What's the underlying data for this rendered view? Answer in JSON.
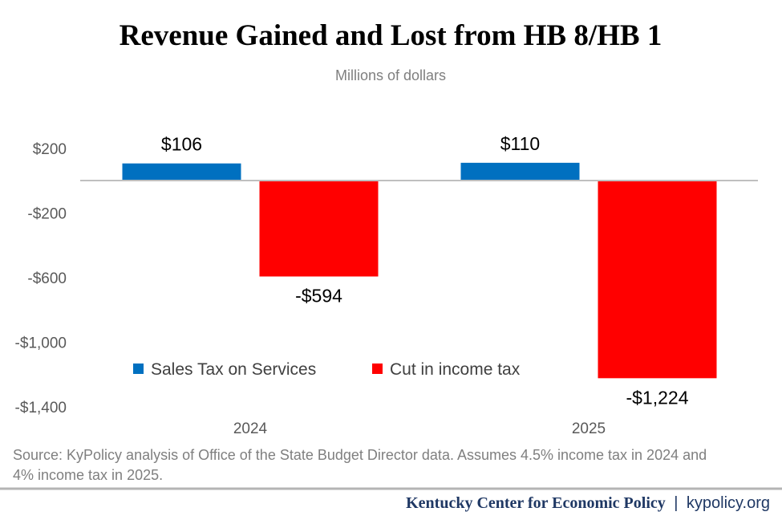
{
  "chart_data": {
    "type": "bar",
    "title": "Revenue Gained and Lost from HB 8/HB 1",
    "subtitle": "Millions of dollars",
    "categories": [
      "2024",
      "2025"
    ],
    "series": [
      {
        "name": "Sales Tax on Services",
        "color": "#0070C0",
        "values": [
          106,
          110
        ],
        "labels": [
          "$106",
          "$110"
        ]
      },
      {
        "name": "Cut in income tax",
        "color": "#FF0000",
        "values": [
          -594,
          -1224
        ],
        "labels": [
          "-$594",
          "-$1,224"
        ]
      }
    ],
    "ylim": [
      -1400,
      200
    ],
    "yticks": [
      200,
      -200,
      -600,
      -1000,
      -1400
    ],
    "ytick_labels": [
      "$200",
      "-$200",
      "-$600",
      "-$1,000",
      "-$1,400"
    ],
    "grid": false,
    "legend": "inside-bottom-left",
    "xlabel": "",
    "ylabel": ""
  },
  "source": "Source: KyPolicy analysis of Office of the State Budget Director data. Assumes 4.5% income tax in 2024 and",
  "source_line2": "4% income tax in 2025.",
  "footer": {
    "org": "Kentucky Center for Economic Policy",
    "separator": "|",
    "url": "kypolicy.org"
  }
}
